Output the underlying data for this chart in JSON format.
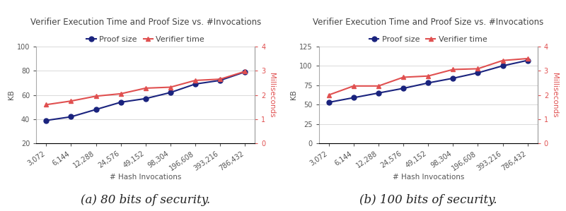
{
  "title": "Verifier Execution Time and Proof Size vs. #Invocations",
  "xlabel": "# Hash Invocations",
  "ylabel_left": "KB",
  "ylabel_right": "Milliseconds",
  "x_labels": [
    "3,072",
    "6,144",
    "12,288",
    "24,576",
    "49,152",
    "98,304",
    "196,608",
    "393,216",
    "786,432"
  ],
  "x_values": [
    3072,
    6144,
    12288,
    24576,
    49152,
    98304,
    196608,
    393216,
    786432
  ],
  "chart_a": {
    "caption": "(a) 80 bits of security.",
    "proof_size": [
      39,
      42,
      48,
      54,
      57,
      62,
      69,
      72,
      79
    ],
    "verifier_time_ms": [
      1.6,
      1.75,
      1.95,
      2.05,
      2.28,
      2.32,
      2.6,
      2.65,
      2.97
    ],
    "ylim_left": [
      20,
      100
    ],
    "ylim_right": [
      0,
      4
    ],
    "yticks_left": [
      20,
      40,
      60,
      80,
      100
    ],
    "yticks_right": [
      0,
      1,
      2,
      3,
      4
    ]
  },
  "chart_b": {
    "caption": "(b) 100 bits of security.",
    "proof_size": [
      53,
      59,
      65,
      71,
      78,
      84,
      91,
      100,
      107
    ],
    "verifier_time_ms": [
      2.0,
      2.37,
      2.37,
      2.73,
      2.78,
      3.05,
      3.08,
      3.42,
      3.5
    ],
    "ylim_left": [
      0,
      125
    ],
    "ylim_right": [
      0,
      4
    ],
    "yticks_left": [
      0,
      25,
      50,
      75,
      100,
      125
    ],
    "yticks_right": [
      0,
      1,
      2,
      3,
      4
    ]
  },
  "proof_color": "#1a237e",
  "verifier_color": "#e05050",
  "background_color": "#ffffff",
  "grid_color": "#cccccc",
  "title_fontsize": 8.5,
  "label_fontsize": 7.5,
  "tick_fontsize": 7,
  "caption_fontsize": 12,
  "legend_fontsize": 8
}
